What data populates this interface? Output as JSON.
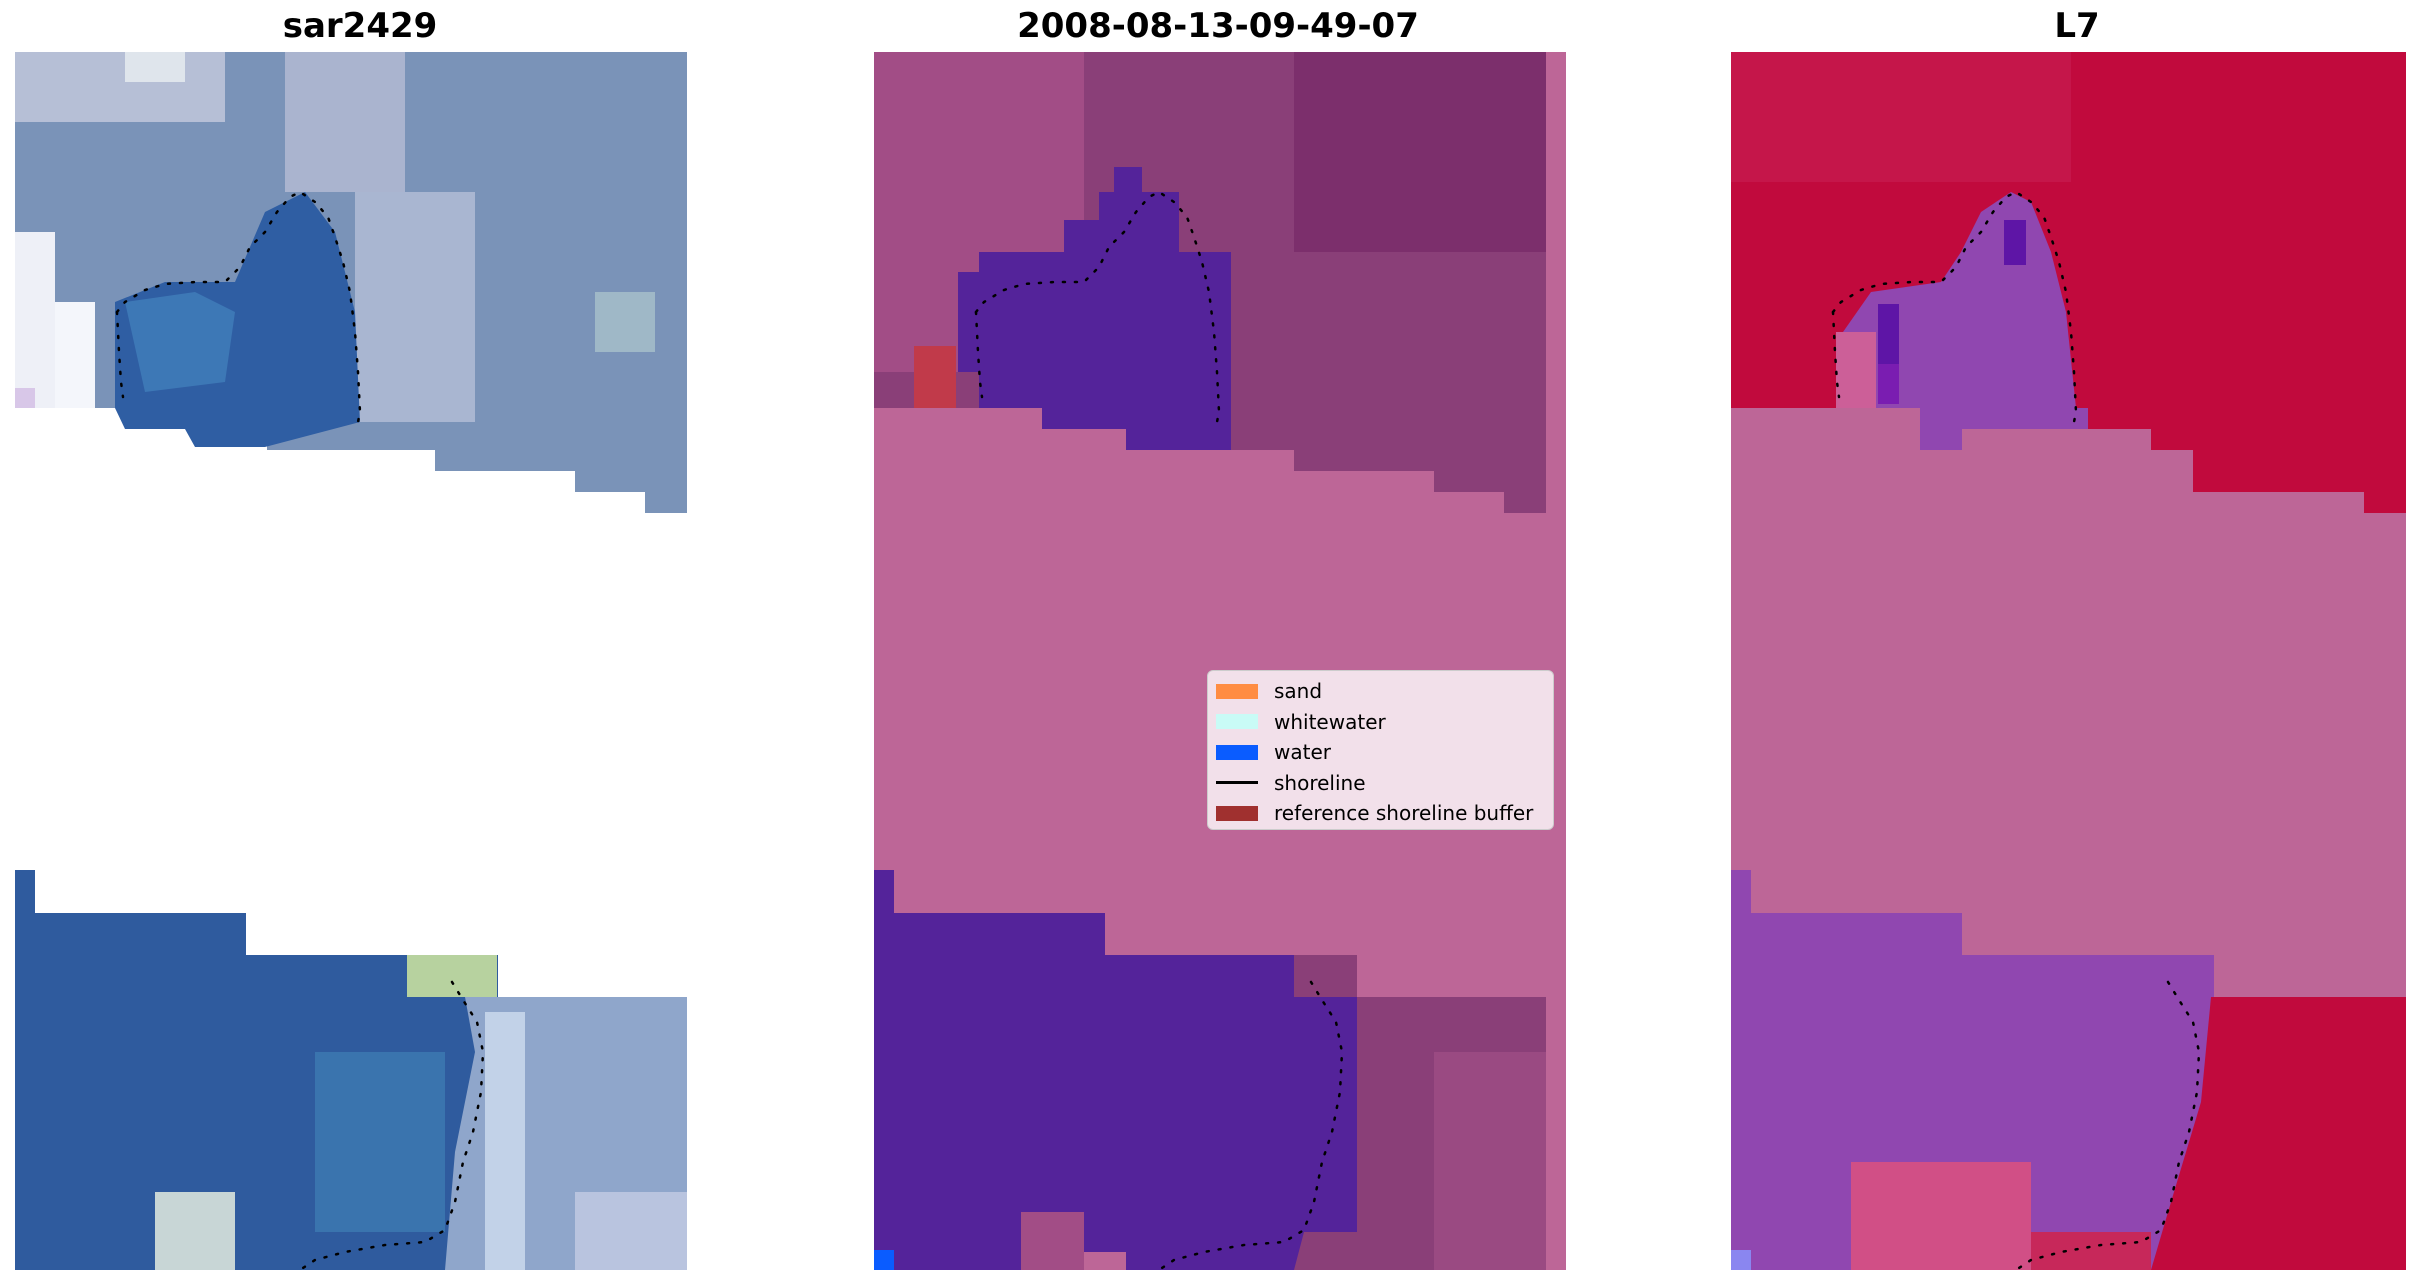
{
  "panels": [
    {
      "title": "sar2429"
    },
    {
      "title": "2008-08-13-09-49-07"
    },
    {
      "title": "L7"
    }
  ],
  "legend": {
    "items": [
      {
        "label": "sand",
        "color": "#ff8c42",
        "icon": "patch"
      },
      {
        "label": "whitewater",
        "color": "#c9fbf6",
        "icon": "patch"
      },
      {
        "label": "water",
        "color": "#0a5cff",
        "icon": "patch"
      },
      {
        "label": "shoreline",
        "color": "#000000",
        "icon": "line"
      },
      {
        "label": "reference shoreline buffer",
        "color": "#a0302f",
        "icon": "patch"
      }
    ]
  },
  "colors": {
    "rgb_water": "#2f5b9e",
    "rgb_land": "#7a93b8",
    "class_water": "#54239a",
    "class_land": "#8a3f78",
    "class_nodata": "#bd6697",
    "ndwi_land": "#c10a3d",
    "ndwi_water": "#9047b0",
    "ndwi_nodata": "#bd6697",
    "buffer_red": "#c13a4a"
  }
}
